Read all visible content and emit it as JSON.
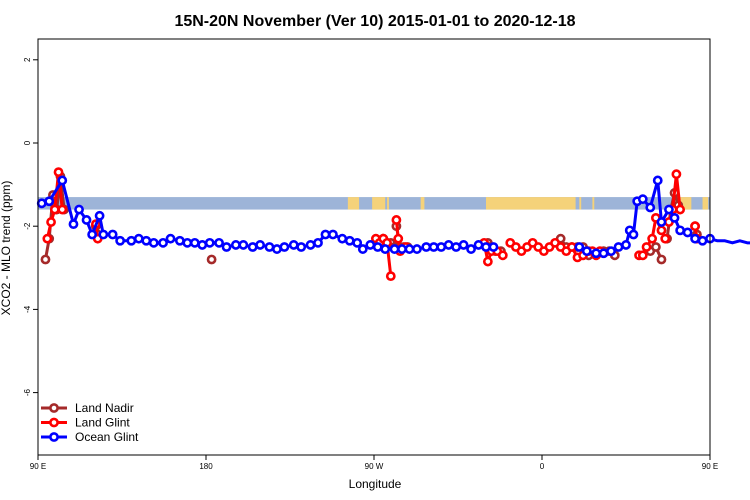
{
  "chart_data": {
    "type": "line",
    "title": "15N-20N November (Ver 10)   2015-01-01 to 2020-12-18",
    "xlabel": "Longitude",
    "ylabel": "XCO2 - MLO trend (ppm)",
    "xlim": [
      90,
      450
    ],
    "ylim": [
      -7.5,
      2.5
    ],
    "x_ticks": [
      {
        "value": 90,
        "label": "90 E"
      },
      {
        "value": 180,
        "label": "180"
      },
      {
        "value": 270,
        "label": "90 W"
      },
      {
        "value": 360,
        "label": "0"
      },
      {
        "value": 450,
        "label": "90 E"
      },
      {
        "value": 540,
        "label": "180"
      }
    ],
    "y_ticks": [
      {
        "value": 2,
        "label": "2"
      },
      {
        "value": 0,
        "label": "0"
      },
      {
        "value": -2,
        "label": "-2"
      },
      {
        "value": -4,
        "label": "-4"
      },
      {
        "value": -6,
        "label": "-6"
      }
    ],
    "land_mask_band": {
      "y_range": [
        -1.6,
        -1.3
      ],
      "ocean_color": "#9db4d8",
      "land_color": "#f5d27a",
      "land_segments": [
        [
          256,
          262
        ],
        [
          269,
          276
        ],
        [
          277,
          278
        ],
        [
          295,
          297
        ],
        [
          330,
          378
        ],
        [
          380,
          381
        ],
        [
          387,
          388
        ],
        [
          431,
          440
        ],
        [
          446,
          449
        ]
      ]
    },
    "legend": {
      "position": "bottom-left",
      "entries": [
        {
          "label": "Land Nadir",
          "color": "#a52a2a"
        },
        {
          "label": "Land Glint",
          "color": "#ff0000"
        },
        {
          "label": "Ocean Glint",
          "color": "#0000ff"
        }
      ]
    },
    "series": [
      {
        "name": "Land Nadir",
        "color": "#a52a2a",
        "segments": [
          [
            [
              94,
              -2.8
            ],
            [
              96,
              -2.3
            ],
            [
              98,
              -1.25
            ],
            [
              100,
              -1.6
            ],
            [
              102,
              -0.8
            ],
            [
              104,
              -1.6
            ]
          ],
          [
            [
              121,
              -2.0
            ],
            [
              122,
              -2.2
            ]
          ],
          [
            [
              183,
              -2.8
            ]
          ],
          [
            [
              275,
              -2.3
            ],
            [
              277,
              -2.4
            ],
            [
              279,
              -2.4
            ],
            [
              281,
              -2.5
            ]
          ],
          [
            [
              282,
              -2.0
            ],
            [
              284,
              -2.5
            ],
            [
              286,
              -2.5
            ],
            [
              288,
              -2.5
            ]
          ],
          [
            [
              331,
              -2.4
            ],
            [
              332,
              -2.5
            ]
          ],
          [
            [
              335,
              -2.6
            ],
            [
              338,
              -2.6
            ]
          ],
          [
            [
              370,
              -2.3
            ],
            [
              373,
              -2.5
            ],
            [
              376,
              -2.5
            ],
            [
              379,
              -2.5
            ],
            [
              382,
              -2.5
            ],
            [
              385,
              -2.7
            ]
          ],
          [
            [
              393,
              -2.6
            ],
            [
              396,
              -2.6
            ],
            [
              399,
              -2.7
            ]
          ],
          [
            [
              418,
              -2.6
            ],
            [
              421,
              -2.5
            ],
            [
              424,
              -2.8
            ]
          ],
          [
            [
              427,
              -2.3
            ],
            [
              429,
              -1.6
            ],
            [
              431,
              -1.2
            ],
            [
              433,
              -1.5
            ]
          ],
          [
            [
              442,
              -2.0
            ],
            [
              443,
              -2.2
            ]
          ]
        ]
      },
      {
        "name": "Land Glint",
        "color": "#ff0000",
        "segments": [
          [
            [
              95,
              -2.3
            ],
            [
              97,
              -1.9
            ],
            [
              99,
              -1.6
            ],
            [
              101,
              -0.7
            ],
            [
              103,
              -1.6
            ]
          ],
          [
            [
              121,
              -1.95
            ],
            [
              122,
              -2.3
            ]
          ],
          [
            [
              271,
              -2.3
            ],
            [
              273,
              -2.4
            ],
            [
              275,
              -2.3
            ],
            [
              277,
              -2.4
            ],
            [
              279,
              -3.2
            ]
          ],
          [
            [
              282,
              -1.85
            ],
            [
              283,
              -2.3
            ],
            [
              284,
              -2.6
            ],
            [
              287,
              -2.5
            ]
          ],
          [
            [
              329,
              -2.4
            ],
            [
              331,
              -2.85
            ],
            [
              333,
              -2.6
            ],
            [
              336,
              -2.6
            ],
            [
              339,
              -2.7
            ]
          ],
          [
            [
              343,
              -2.4
            ],
            [
              346,
              -2.5
            ],
            [
              349,
              -2.6
            ],
            [
              352,
              -2.5
            ],
            [
              355,
              -2.4
            ],
            [
              358,
              -2.5
            ],
            [
              361,
              -2.6
            ],
            [
              364,
              -2.5
            ],
            [
              367,
              -2.4
            ],
            [
              370,
              -2.5
            ],
            [
              373,
              -2.6
            ],
            [
              376,
              -2.5
            ],
            [
              379,
              -2.75
            ],
            [
              382,
              -2.7
            ],
            [
              385,
              -2.6
            ]
          ],
          [
            [
              387,
              -2.6
            ],
            [
              389,
              -2.7
            ],
            [
              391,
              -2.6
            ]
          ],
          [
            [
              412,
              -2.7
            ],
            [
              414,
              -2.7
            ]
          ],
          [
            [
              416,
              -2.5
            ],
            [
              419,
              -2.3
            ],
            [
              421,
              -1.8
            ],
            [
              424,
              -2.1
            ],
            [
              426,
              -2.3
            ]
          ],
          [
            [
              428,
              -1.9
            ],
            [
              430,
              -1.6
            ],
            [
              432,
              -0.75
            ],
            [
              434,
              -1.6
            ]
          ],
          [
            [
              442,
              -2.0
            ],
            [
              443,
              -2.3
            ]
          ]
        ]
      },
      {
        "name": "Ocean Glint",
        "color": "#0000ff",
        "segments": [
          [
            [
              92,
              -1.45
            ],
            [
              96,
              -1.4
            ],
            [
              103,
              -0.9
            ],
            [
              109,
              -1.95
            ],
            [
              112,
              -1.6
            ],
            [
              116,
              -1.85
            ],
            [
              119,
              -2.2
            ],
            [
              123,
              -1.75
            ],
            [
              125,
              -2.2
            ],
            [
              130,
              -2.2
            ],
            [
              134,
              -2.35
            ],
            [
              140,
              -2.35
            ],
            [
              144,
              -2.3
            ],
            [
              148,
              -2.35
            ],
            [
              152,
              -2.4
            ],
            [
              157,
              -2.4
            ],
            [
              161,
              -2.3
            ],
            [
              166,
              -2.35
            ],
            [
              170,
              -2.4
            ],
            [
              174,
              -2.4
            ],
            [
              178,
              -2.45
            ],
            [
              182,
              -2.4
            ],
            [
              187,
              -2.4
            ],
            [
              191,
              -2.5
            ],
            [
              196,
              -2.45
            ],
            [
              200,
              -2.45
            ],
            [
              205,
              -2.5
            ],
            [
              209,
              -2.45
            ],
            [
              214,
              -2.5
            ],
            [
              218,
              -2.55
            ],
            [
              222,
              -2.5
            ],
            [
              227,
              -2.45
            ],
            [
              231,
              -2.5
            ],
            [
              236,
              -2.45
            ],
            [
              240,
              -2.4
            ],
            [
              244,
              -2.2
            ],
            [
              248,
              -2.2
            ],
            [
              253,
              -2.3
            ],
            [
              257,
              -2.35
            ],
            [
              261,
              -2.4
            ],
            [
              264,
              -2.55
            ],
            [
              268,
              -2.45
            ],
            [
              272,
              -2.5
            ],
            [
              276,
              -2.55
            ],
            [
              281,
              -2.55
            ],
            [
              285,
              -2.55
            ],
            [
              289,
              -2.55
            ],
            [
              293,
              -2.55
            ],
            [
              298,
              -2.5
            ],
            [
              302,
              -2.5
            ],
            [
              306,
              -2.5
            ],
            [
              310,
              -2.45
            ],
            [
              314,
              -2.5
            ],
            [
              318,
              -2.45
            ],
            [
              322,
              -2.55
            ],
            [
              326,
              -2.45
            ],
            [
              330,
              -2.5
            ],
            [
              334,
              -2.5
            ]
          ],
          [
            [
              380,
              -2.5
            ],
            [
              384,
              -2.6
            ],
            [
              389,
              -2.65
            ],
            [
              393,
              -2.65
            ],
            [
              397,
              -2.6
            ],
            [
              401,
              -2.5
            ],
            [
              405,
              -2.45
            ],
            [
              407,
              -2.1
            ],
            [
              409,
              -2.2
            ],
            [
              411,
              -1.4
            ],
            [
              414,
              -1.35
            ],
            [
              418,
              -1.55
            ],
            [
              422,
              -0.9
            ],
            [
              424,
              -1.9
            ],
            [
              428,
              -1.6
            ],
            [
              431,
              -1.8
            ],
            [
              434,
              -2.1
            ],
            [
              438,
              -2.15
            ],
            [
              442,
              -2.3
            ],
            [
              446,
              -2.35
            ],
            [
              450,
              -2.3
            ],
            [
              454,
              -2.35
            ],
            [
              458,
              -2.35
            ],
            [
              462,
              -2.4
            ],
            [
              466,
              -2.35
            ],
            [
              470,
              -2.4
            ],
            [
              474,
              -2.4
            ],
            [
              478,
              -2.35
            ],
            [
              482,
              -2.35
            ],
            [
              486,
              -2.4
            ],
            [
              490,
              -2.45
            ]
          ]
        ]
      }
    ]
  }
}
